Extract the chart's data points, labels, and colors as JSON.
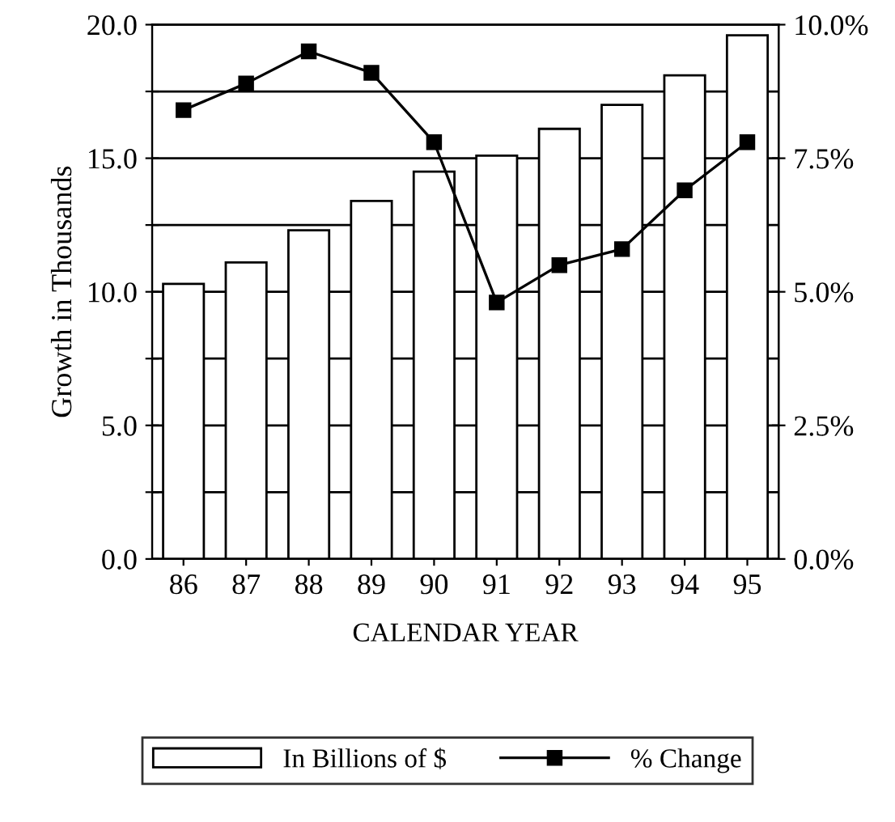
{
  "chart_data": {
    "type": "bar",
    "xlabel": "CALENDAR YEAR",
    "ylabel": "Growth in Thousands",
    "categories": [
      "86",
      "87",
      "88",
      "89",
      "90",
      "91",
      "92",
      "93",
      "94",
      "95"
    ],
    "series": [
      {
        "name": "In Billions of $",
        "color": "#ffffff",
        "values": [
          10.3,
          11.1,
          12.3,
          13.4,
          14.5,
          15.1,
          16.1,
          17.0,
          18.1,
          19.6
        ]
      },
      {
        "name": "% Change",
        "type": "line",
        "axis": "y2",
        "color": "#000000",
        "marker": "square",
        "values": [
          8.4,
          8.9,
          9.5,
          9.1,
          7.8,
          4.8,
          5.5,
          5.8,
          6.9,
          7.8
        ]
      }
    ],
    "ylim": [
      0,
      20
    ],
    "yticks": [
      {
        "value": 0,
        "label": "0.0"
      },
      {
        "value": 2.5,
        "label": null
      },
      {
        "value": 5,
        "label": "5.0"
      },
      {
        "value": 7.5,
        "label": null
      },
      {
        "value": 10,
        "label": "10.0"
      },
      {
        "value": 12.5,
        "label": null
      },
      {
        "value": 15,
        "label": "15.0"
      },
      {
        "value": 17.5,
        "label": null
      },
      {
        "value": 20,
        "label": "20.0"
      }
    ],
    "y2lim": [
      0,
      10
    ],
    "y2ticks": [
      {
        "value": 0,
        "label": "0.0%"
      },
      {
        "value": 2.5,
        "label": "2.5%"
      },
      {
        "value": 5,
        "label": "5.0%"
      },
      {
        "value": 7.5,
        "label": "7.5%"
      },
      {
        "value": 10,
        "label": "10.0%"
      }
    ],
    "grid": "y",
    "legend": "bottom"
  }
}
